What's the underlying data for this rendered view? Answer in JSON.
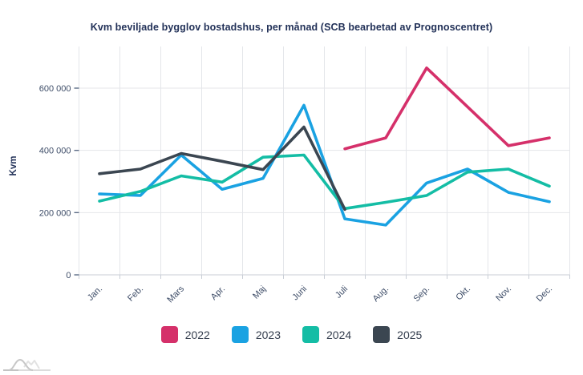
{
  "title": "Kvm beviljade bygglov bostadshus, per månad (SCB bearbetad av Prognoscentret)",
  "chart_data": {
    "type": "line",
    "title": "Kvm beviljade bygglov bostadshus, per månad (SCB bearbetad av Prognoscentret)",
    "xlabel": "",
    "ylabel": "Kvm",
    "categories": [
      "Jan.",
      "Feb.",
      "Mars",
      "Apr.",
      "Maj",
      "Juni",
      "Juli",
      "Aug.",
      "Sep.",
      "Okt.",
      "Nov.",
      "Dec."
    ],
    "y_ticks": [
      0,
      200000,
      400000,
      600000
    ],
    "y_tick_labels": [
      "0",
      "200 000",
      "400 000",
      "600 000"
    ],
    "ylim": [
      0,
      730000
    ],
    "grid": true,
    "legend_position": "bottom",
    "series": [
      {
        "name": "2022",
        "color": "#d5306a",
        "values": [
          null,
          null,
          null,
          null,
          null,
          null,
          405000,
          440000,
          665000,
          540000,
          415000,
          440000
        ]
      },
      {
        "name": "2023",
        "color": "#1aa2e2",
        "values": [
          260000,
          255000,
          385000,
          275000,
          310000,
          545000,
          180000,
          160000,
          295000,
          340000,
          265000,
          235000
        ]
      },
      {
        "name": "2024",
        "color": "#14bda5",
        "values": [
          237000,
          268000,
          318000,
          298000,
          378000,
          385000,
          213000,
          233000,
          255000,
          330000,
          340000,
          285000
        ]
      },
      {
        "name": "2025",
        "color": "#3b4651",
        "values": [
          325000,
          340000,
          390000,
          365000,
          338000,
          475000,
          210000,
          null,
          null,
          null,
          null,
          null
        ]
      }
    ]
  },
  "colors": {
    "title_text": "#223158",
    "tick_text": "#3e4d68",
    "gridline": "#e4e6ea",
    "axis_line": "#c9ced6",
    "y_tick_mark": "#5b6b85"
  },
  "logo": {
    "icon": "mountains-logo-icon"
  }
}
